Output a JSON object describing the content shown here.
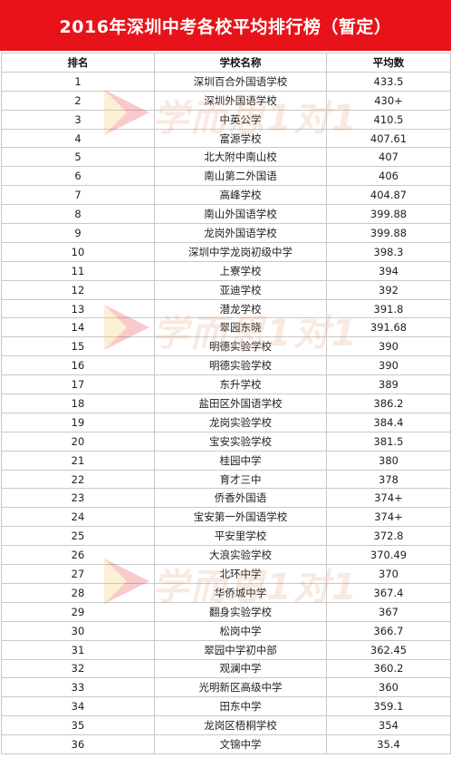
{
  "title": "2016年深圳中考各校平均排行榜（暂定）",
  "table": {
    "headers": [
      "排名",
      "学校名称",
      "平均数"
    ],
    "rows": [
      [
        "1",
        "深圳百合外国语学校",
        "433.5"
      ],
      [
        "2",
        "深圳外国语学校",
        "430+"
      ],
      [
        "3",
        "中英公学",
        "410.5"
      ],
      [
        "4",
        "富源学校",
        "407.61"
      ],
      [
        "5",
        "北大附中南山校",
        "407"
      ],
      [
        "6",
        "南山第二外国语",
        "406"
      ],
      [
        "7",
        "高峰学校",
        "404.87"
      ],
      [
        "8",
        "南山外国语学校",
        "399.88"
      ],
      [
        "9",
        "龙岗外国语学校",
        "399.88"
      ],
      [
        "10",
        "深圳中学龙岗初级中学",
        "398.3"
      ],
      [
        "11",
        "上寮学校",
        "394"
      ],
      [
        "12",
        "亚迪学校",
        "392"
      ],
      [
        "13",
        "潜龙学校",
        "391.8"
      ],
      [
        "14",
        "翠园东晓",
        "391.68"
      ],
      [
        "15",
        "明德实验学校",
        "390"
      ],
      [
        "16",
        "明德实验学校",
        "390"
      ],
      [
        "17",
        "东升学校",
        "389"
      ],
      [
        "18",
        "盐田区外国语学校",
        "386.2"
      ],
      [
        "19",
        "龙岗实验学校",
        "384.4"
      ],
      [
        "20",
        "宝安实验学校",
        "381.5"
      ],
      [
        "21",
        "桂园中学",
        "380"
      ],
      [
        "22",
        "育才三中",
        "378"
      ],
      [
        "23",
        "侨香外国语",
        "374+"
      ],
      [
        "24",
        "宝安第一外国语学校",
        "374+"
      ],
      [
        "25",
        "平安里学校",
        "372.8"
      ],
      [
        "26",
        "大浪实验学校",
        "370.49"
      ],
      [
        "27",
        "北环中学",
        "370"
      ],
      [
        "28",
        "华侨城中学",
        "367.4"
      ],
      [
        "29",
        "翻身实验学校",
        "367"
      ],
      [
        "30",
        "松岗中学",
        "366.7"
      ],
      [
        "31",
        "翠园中学初中部",
        "362.45"
      ],
      [
        "32",
        "观澜中学",
        "360.2"
      ],
      [
        "33",
        "光明新区高级中学",
        "360"
      ],
      [
        "34",
        "田东中学",
        "359.1"
      ],
      [
        "35",
        "龙岗区梧桐学校",
        "354"
      ],
      [
        "36",
        "文锦中学",
        "35.4"
      ]
    ]
  },
  "watermark": {
    "text": "学而思1对1",
    "accent": "#e8131a",
    "tint": "#f0c040"
  },
  "colors": {
    "title_bg": "#e8131a",
    "title_text": "#ffffff",
    "grid": "#c9c9c9"
  }
}
